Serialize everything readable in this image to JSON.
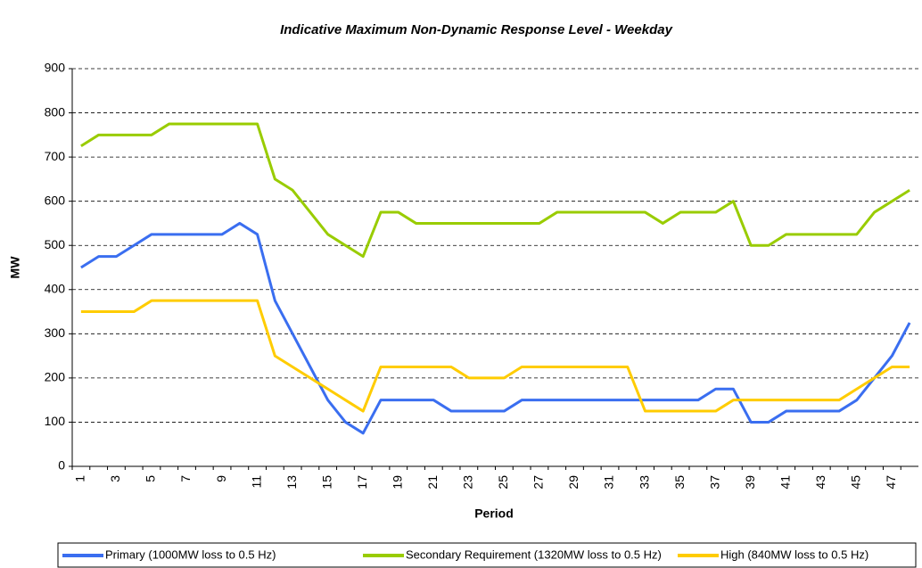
{
  "chart_data": {
    "type": "line",
    "title": "Indicative Maximum Non-Dynamic Response Level - Weekday",
    "xlabel": "Period",
    "ylabel": "MW",
    "categories": [
      "1",
      null,
      "3",
      null,
      "5",
      null,
      "7",
      null,
      "9",
      null,
      "11",
      null,
      "13",
      null,
      "15",
      null,
      "17",
      null,
      "19",
      null,
      "21",
      null,
      "23",
      null,
      "25",
      null,
      "27",
      null,
      "29",
      null,
      "31",
      null,
      "33",
      null,
      "35",
      null,
      "37",
      null,
      "39",
      null,
      "41",
      null,
      "43",
      null,
      "45",
      null,
      "47",
      null
    ],
    "series": [
      {
        "name": "Primary (1000MW loss to 0.5 Hz)",
        "color": "#3a6ef0",
        "values": [
          450,
          475,
          475,
          500,
          525,
          525,
          525,
          525,
          525,
          550,
          525,
          375,
          300,
          225,
          150,
          100,
          75,
          150,
          150,
          150,
          150,
          125,
          125,
          125,
          125,
          150,
          150,
          150,
          150,
          150,
          150,
          150,
          150,
          150,
          150,
          150,
          175,
          175,
          100,
          100,
          125,
          125,
          125,
          125,
          150,
          200,
          250,
          325
        ]
      },
      {
        "name": "Secondary Requirement (1320MW loss to 0.5 Hz)",
        "color": "#99cc00",
        "values": [
          725,
          750,
          750,
          750,
          750,
          775,
          775,
          775,
          775,
          775,
          775,
          650,
          625,
          575,
          525,
          500,
          475,
          575,
          575,
          550,
          550,
          550,
          550,
          550,
          550,
          550,
          550,
          575,
          575,
          575,
          575,
          575,
          575,
          550,
          575,
          575,
          575,
          600,
          500,
          500,
          525,
          525,
          525,
          525,
          525,
          575,
          600,
          625
        ]
      },
      {
        "name": "High (840MW loss to 0.5 Hz)",
        "color": "#ffcc00",
        "values": [
          350,
          350,
          350,
          350,
          375,
          375,
          375,
          375,
          375,
          375,
          375,
          250,
          225,
          200,
          175,
          150,
          125,
          225,
          225,
          225,
          225,
          225,
          200,
          200,
          200,
          225,
          225,
          225,
          225,
          225,
          225,
          225,
          125,
          125,
          125,
          125,
          125,
          150,
          150,
          150,
          150,
          150,
          150,
          150,
          175,
          200,
          225,
          225
        ]
      }
    ],
    "ylim": [
      0,
      900
    ],
    "yticks": [
      0,
      100,
      200,
      300,
      400,
      500,
      600,
      700,
      800,
      900
    ],
    "grid": true,
    "legend": "bottom"
  }
}
